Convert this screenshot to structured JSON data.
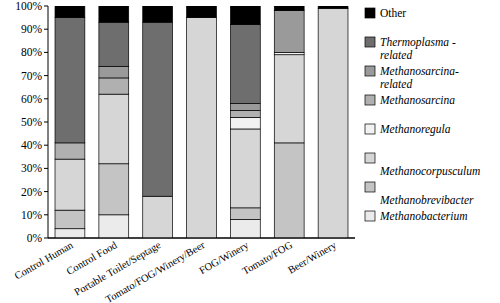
{
  "chart_data": {
    "type": "bar",
    "stacked": true,
    "categories": [
      "Control Human",
      "Control Food",
      "Portable Toilet/Septage",
      "Tomato/FOG/Winery/Beer",
      "FOG/Winery",
      "Tomato/FOG",
      "Beer/Winery"
    ],
    "ylim": [
      0,
      100
    ],
    "yticks": [
      {
        "value": 0,
        "label": "0%"
      },
      {
        "value": 10,
        "label": "10%"
      },
      {
        "value": 20,
        "label": "20%"
      },
      {
        "value": 30,
        "label": "30%"
      },
      {
        "value": 40,
        "label": "40%"
      },
      {
        "value": 50,
        "label": "50%"
      },
      {
        "value": 60,
        "label": "60%"
      },
      {
        "value": 70,
        "label": "70%"
      },
      {
        "value": 80,
        "label": "80%"
      },
      {
        "value": 90,
        "label": "90%"
      },
      {
        "value": 100,
        "label": "100%"
      }
    ],
    "grid": false,
    "legend": "right",
    "series": [
      {
        "name": "Methanobacterium",
        "color": "#ebebeb",
        "values": [
          4,
          10,
          0,
          0,
          8,
          0,
          0
        ]
      },
      {
        "name": "Methanobrevibacter",
        "color": "#c4c4c4",
        "values": [
          8,
          22,
          0,
          0,
          5,
          41,
          0
        ]
      },
      {
        "name": "Methanocorpusculum",
        "color": "#d6d6d6",
        "values": [
          22,
          30,
          18,
          95,
          34,
          38,
          99
        ]
      },
      {
        "name": "Methanoregula",
        "color": "#f2f2f2",
        "values": [
          0,
          0,
          0,
          0,
          5,
          1,
          0
        ]
      },
      {
        "name": "Methanosarcina",
        "color": "#b0b0b0",
        "values": [
          7,
          7,
          0,
          0,
          3,
          0,
          0
        ]
      },
      {
        "name": "Methanosarcina-related",
        "color": "#9a9a9a",
        "values": [
          0,
          5,
          0,
          0,
          3,
          18,
          0
        ]
      },
      {
        "name": "Thermoplasma - related",
        "color": "#6e6e6e",
        "values": [
          54,
          19,
          75,
          0,
          34,
          0,
          0
        ]
      },
      {
        "name": "Other",
        "color": "#000000",
        "values": [
          5,
          7,
          7,
          5,
          8,
          2,
          1
        ]
      }
    ]
  }
}
